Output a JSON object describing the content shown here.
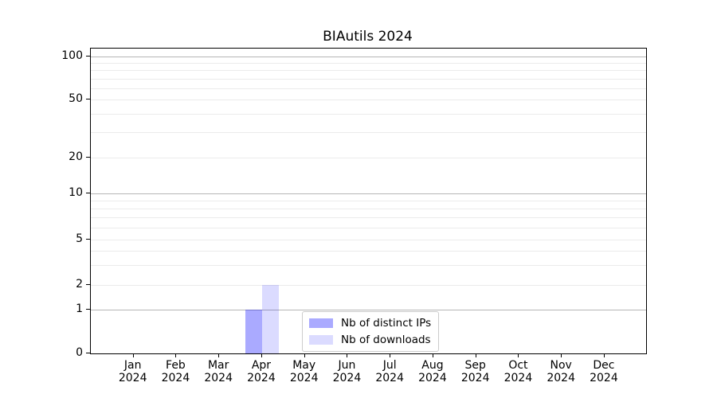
{
  "chart_data": {
    "type": "bar",
    "title": "BIAutils 2024",
    "categories": [
      "Jan",
      "Feb",
      "Mar",
      "Apr",
      "May",
      "Jun",
      "Jul",
      "Aug",
      "Sep",
      "Oct",
      "Nov",
      "Dec"
    ],
    "category_year": "2024",
    "series": [
      {
        "name": "Nb of distinct IPs",
        "color": "#0000FF55",
        "values": [
          0,
          0,
          0,
          1,
          0,
          0,
          0,
          0,
          0,
          0,
          0,
          0
        ]
      },
      {
        "name": "Nb of downloads",
        "color": "#0000FF24",
        "values": [
          0,
          0,
          0,
          2,
          0,
          0,
          0,
          0,
          0,
          0,
          0,
          0
        ]
      }
    ],
    "xlabel": "",
    "ylabel": "",
    "yscale": "symlog",
    "ylim": [
      0,
      115
    ],
    "y_ticks": [
      0,
      1,
      2,
      5,
      10,
      20,
      50,
      100
    ],
    "y_major_gridlines": [
      1,
      10,
      100
    ],
    "y_minor_gridlines": [
      2,
      3,
      4,
      5,
      6,
      7,
      8,
      9,
      20,
      30,
      40,
      50,
      60,
      70,
      80,
      90
    ],
    "grid": "horizontal-only",
    "legend_position": "lower-center-inside",
    "colors": {
      "axis": "#000000",
      "major_grid": "#b5b5b5",
      "minor_grid": "#ebebeb",
      "background": "#ffffff"
    }
  }
}
